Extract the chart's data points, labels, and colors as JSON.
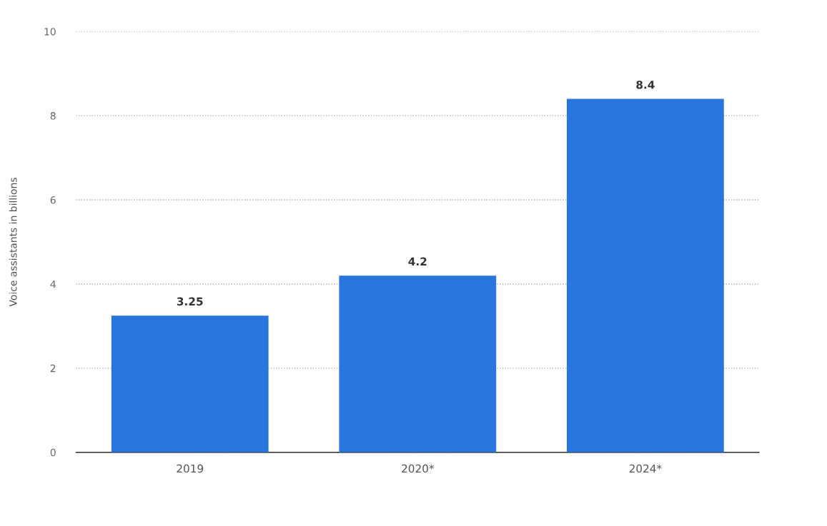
{
  "chart_data": {
    "type": "bar",
    "ylabel": "Voice assistants in billions",
    "categories": [
      "2019",
      "2020*",
      "2024*"
    ],
    "values": [
      3.25,
      4.2,
      8.4
    ],
    "color": "#2876dd",
    "ylim": [
      0,
      10
    ],
    "yticks": [
      0,
      2,
      4,
      6,
      8,
      10
    ],
    "grid": "y",
    "data_labels": true
  }
}
